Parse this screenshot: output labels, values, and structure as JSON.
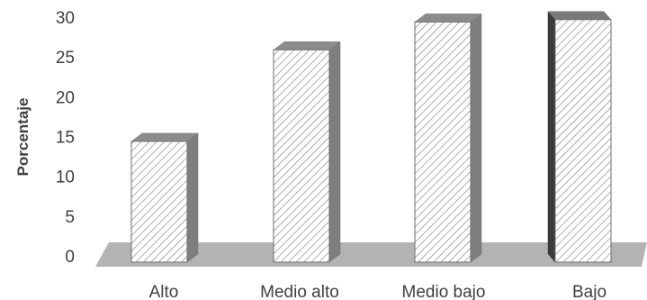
{
  "chart_data": {
    "type": "bar",
    "categories": [
      "Alto",
      "Medio alto",
      "Medio bajo",
      "Bajo"
    ],
    "values": [
      14.5,
      26,
      29.5,
      29.8
    ],
    "title": "",
    "xlabel": "",
    "ylabel": "Porcentaje",
    "ylim": [
      0,
      30
    ],
    "yticks": [
      "0",
      "5",
      "10",
      "15",
      "20",
      "25",
      "30"
    ],
    "grid": false,
    "legend": "none",
    "style": "3d-column-hatched"
  }
}
